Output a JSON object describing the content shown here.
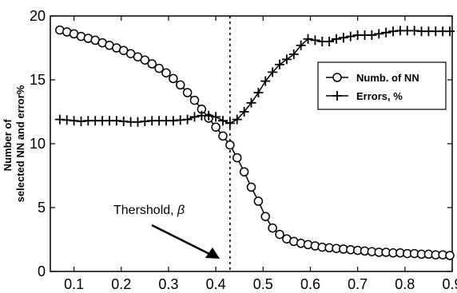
{
  "chart_data": {
    "type": "line",
    "ylabel_lines": [
      "Number of",
      "selected NN and error%"
    ],
    "xlim": [
      0.05,
      0.9
    ],
    "ylim": [
      0,
      20
    ],
    "xticks": [
      "0.1",
      "0.2",
      "0.3",
      "0.4",
      "0.5",
      "0.6",
      "0.7",
      "0.8",
      "0.9"
    ],
    "yticks": [
      "0",
      "5",
      "10",
      "15",
      "20"
    ],
    "grid": false,
    "legend_position": "top-right",
    "series": [
      {
        "name": "Numb. of NN",
        "marker": "circle",
        "x": [
          0.07,
          0.085,
          0.1,
          0.115,
          0.13,
          0.145,
          0.16,
          0.175,
          0.19,
          0.205,
          0.22,
          0.235,
          0.25,
          0.265,
          0.28,
          0.295,
          0.31,
          0.325,
          0.34,
          0.355,
          0.37,
          0.385,
          0.4,
          0.415,
          0.43,
          0.445,
          0.46,
          0.475,
          0.49,
          0.505,
          0.52,
          0.535,
          0.55,
          0.565,
          0.58,
          0.595,
          0.61,
          0.625,
          0.64,
          0.655,
          0.67,
          0.685,
          0.7,
          0.715,
          0.73,
          0.745,
          0.76,
          0.775,
          0.79,
          0.805,
          0.82,
          0.835,
          0.85,
          0.865,
          0.88,
          0.895
        ],
        "y": [
          18.9,
          18.75,
          18.6,
          18.4,
          18.25,
          18.1,
          17.9,
          17.7,
          17.5,
          17.3,
          17.05,
          16.8,
          16.55,
          16.25,
          15.9,
          15.55,
          15.1,
          14.6,
          14.0,
          13.4,
          12.7,
          12.0,
          11.3,
          10.6,
          9.9,
          8.9,
          7.8,
          6.6,
          5.5,
          4.3,
          3.4,
          2.9,
          2.55,
          2.35,
          2.2,
          2.1,
          2.0,
          1.9,
          1.85,
          1.8,
          1.75,
          1.7,
          1.65,
          1.6,
          1.55,
          1.5,
          1.5,
          1.45,
          1.45,
          1.4,
          1.4,
          1.35,
          1.35,
          1.3,
          1.3,
          1.25
        ]
      },
      {
        "name": "Errors, %",
        "marker": "plus",
        "x": [
          0.07,
          0.085,
          0.1,
          0.115,
          0.13,
          0.145,
          0.16,
          0.175,
          0.19,
          0.205,
          0.22,
          0.235,
          0.25,
          0.265,
          0.28,
          0.295,
          0.31,
          0.325,
          0.34,
          0.355,
          0.37,
          0.385,
          0.4,
          0.415,
          0.43,
          0.445,
          0.46,
          0.475,
          0.49,
          0.505,
          0.52,
          0.535,
          0.55,
          0.565,
          0.58,
          0.595,
          0.61,
          0.625,
          0.64,
          0.655,
          0.67,
          0.685,
          0.7,
          0.715,
          0.73,
          0.745,
          0.76,
          0.775,
          0.79,
          0.805,
          0.82,
          0.835,
          0.85,
          0.865,
          0.88,
          0.895
        ],
        "y": [
          11.9,
          11.85,
          11.8,
          11.75,
          11.8,
          11.8,
          11.8,
          11.8,
          11.8,
          11.75,
          11.7,
          11.7,
          11.75,
          11.8,
          11.8,
          11.8,
          11.8,
          11.85,
          11.9,
          12.1,
          12.2,
          12.2,
          12.1,
          11.8,
          11.6,
          11.9,
          12.5,
          13.2,
          14.0,
          14.9,
          15.6,
          16.2,
          16.6,
          17.0,
          17.7,
          18.2,
          18.1,
          18.0,
          18.0,
          18.2,
          18.3,
          18.4,
          18.5,
          18.5,
          18.5,
          18.6,
          18.7,
          18.8,
          18.85,
          18.85,
          18.85,
          18.8,
          18.8,
          18.8,
          18.8,
          18.8
        ]
      }
    ],
    "threshold": {
      "x": 0.43,
      "label": "Thershold, ",
      "symbol": "β"
    }
  }
}
